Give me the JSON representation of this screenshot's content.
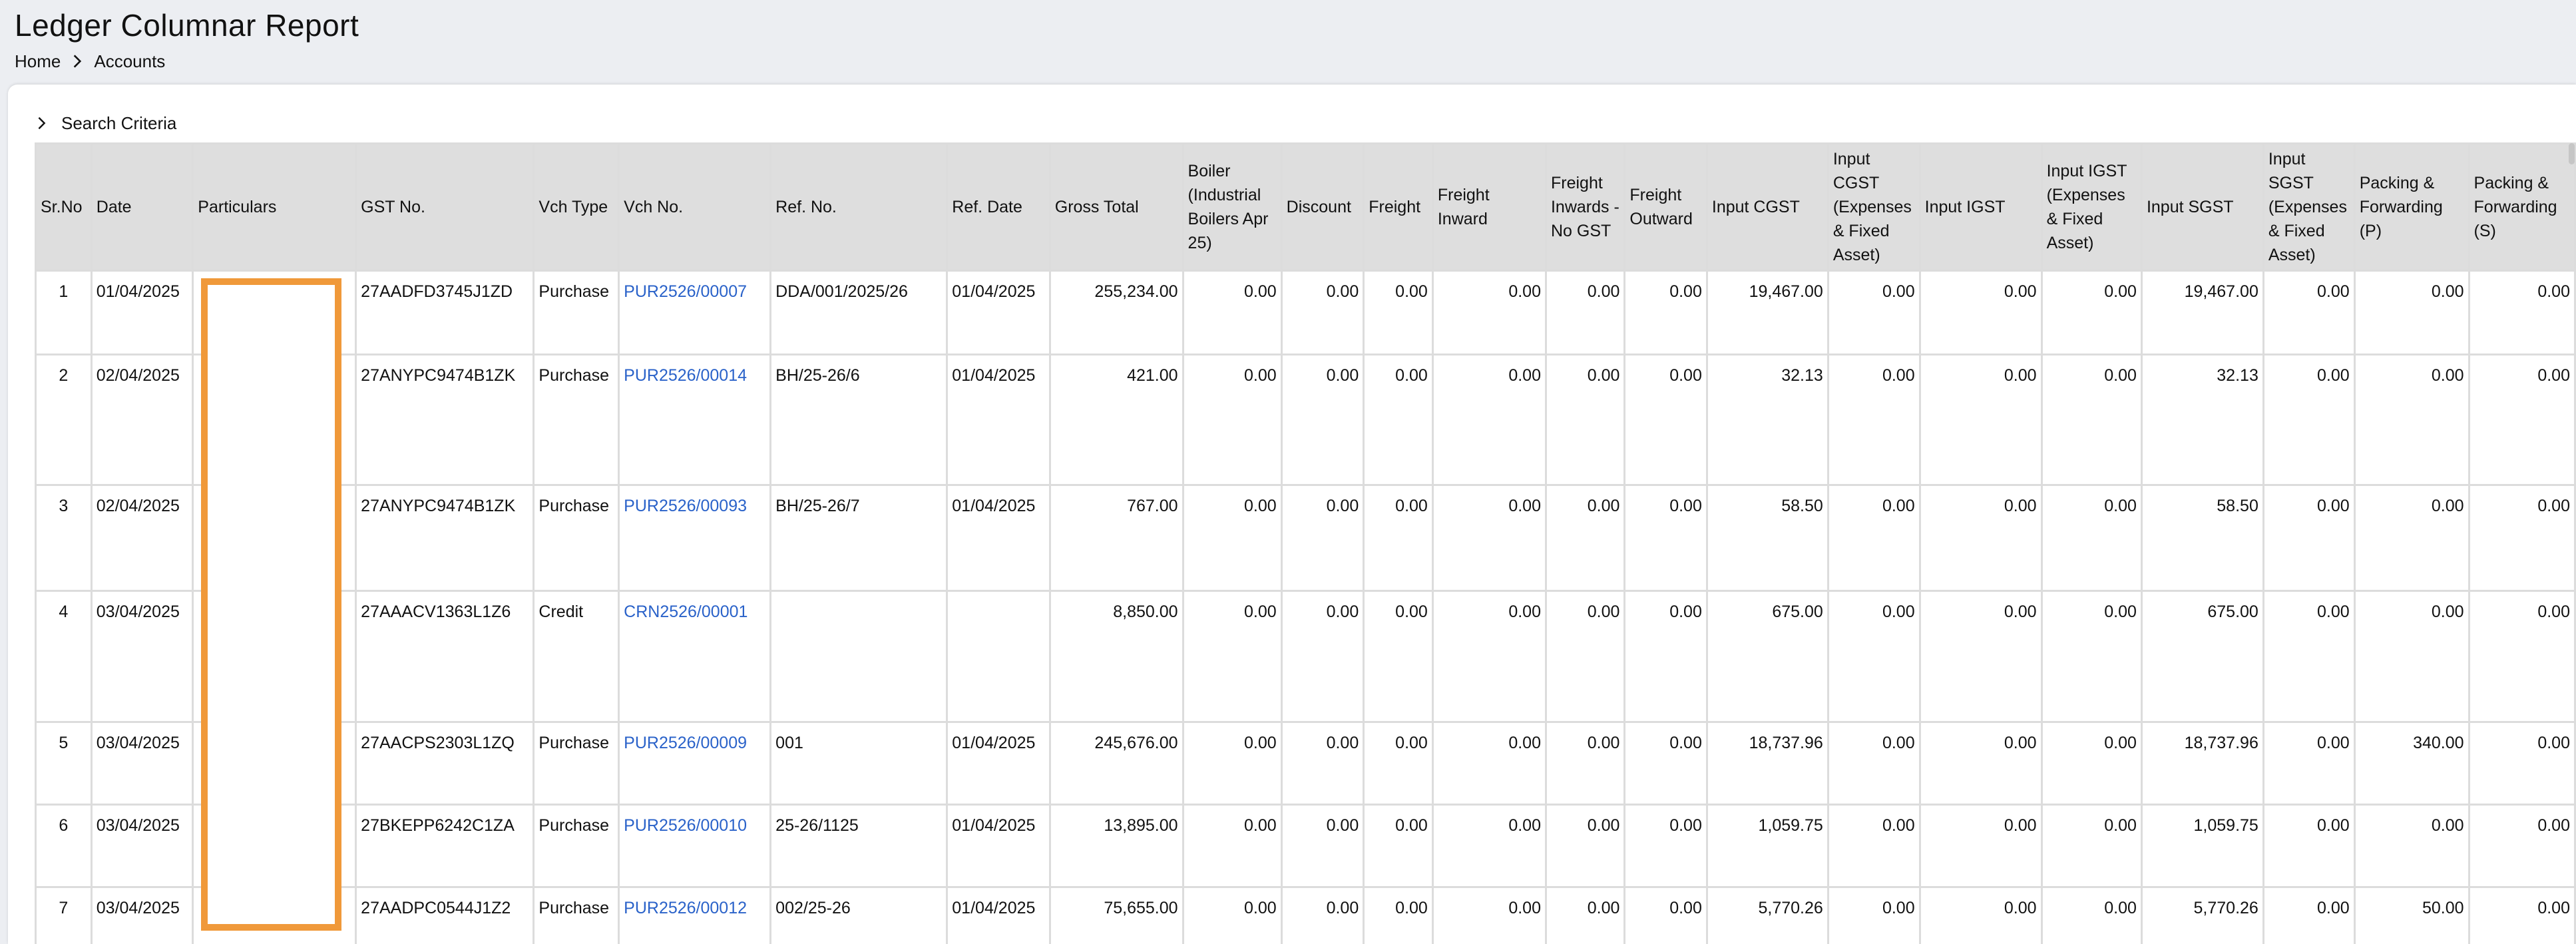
{
  "header": {
    "title": "Ledger Columnar Report",
    "breadcrumb": [
      {
        "label": "Home"
      },
      {
        "label": "Accounts"
      }
    ]
  },
  "search": {
    "label": "Search Criteria",
    "icon": "chevron-right-icon"
  },
  "colors": {
    "link": "#2a62c9",
    "header_bg": "#dedede",
    "border": "#dcdcdc",
    "page_bg": "#eceef2",
    "redaction": "#f0993a"
  },
  "table": {
    "columns": [
      "Sr.No",
      "Date",
      "Particulars",
      "GST No.",
      "Vch Type",
      "Vch No.",
      "Ref. No.",
      "Ref. Date",
      "Gross Total",
      "Boiler (Industrial Boilers Apr 25)",
      "Discount",
      "Freight",
      "Freight Inward",
      "Freight Inwards - No GST",
      "Freight Outward",
      "Input CGST",
      "Input CGST (Expenses & Fixed Asset)",
      "Input IGST",
      "Input IGST (Expenses & Fixed Asset)",
      "Input SGST",
      "Input SGST (Expenses & Fixed Asset)",
      "Packing & Forwarding (P)",
      "Packing & Forwarding (S)"
    ],
    "rows": [
      {
        "sr": "1",
        "date": "01/04/2025",
        "particulars": "",
        "gst": "27AADFD3745J1ZD",
        "vch_type": "Purchase",
        "vch_no": "PUR2526/00007",
        "ref_no": "DDA/001/2025/26",
        "ref_date": "01/04/2025",
        "gross_total": "255,234.00",
        "boiler": "0.00",
        "discount": "0.00",
        "freight": "0.00",
        "freight_inward": "0.00",
        "freight_inwards_no_gst": "0.00",
        "freight_outward": "0.00",
        "input_cgst": "19,467.00",
        "input_cgst_exp": "0.00",
        "input_igst": "0.00",
        "input_igst_exp": "0.00",
        "input_sgst": "19,467.00",
        "input_sgst_exp": "0.00",
        "packing_p": "0.00",
        "packing_s": "0.00"
      },
      {
        "sr": "2",
        "date": "02/04/2025",
        "particulars": "",
        "gst": "27ANYPC9474B1ZK",
        "vch_type": "Purchase",
        "vch_no": "PUR2526/00014",
        "ref_no": "BH/25-26/6",
        "ref_date": "01/04/2025",
        "gross_total": "421.00",
        "boiler": "0.00",
        "discount": "0.00",
        "freight": "0.00",
        "freight_inward": "0.00",
        "freight_inwards_no_gst": "0.00",
        "freight_outward": "0.00",
        "input_cgst": "32.13",
        "input_cgst_exp": "0.00",
        "input_igst": "0.00",
        "input_igst_exp": "0.00",
        "input_sgst": "32.13",
        "input_sgst_exp": "0.00",
        "packing_p": "0.00",
        "packing_s": "0.00"
      },
      {
        "sr": "3",
        "date": "02/04/2025",
        "particulars": "",
        "gst": "27ANYPC9474B1ZK",
        "vch_type": "Purchase",
        "vch_no": "PUR2526/00093",
        "ref_no": "BH/25-26/7",
        "ref_date": "01/04/2025",
        "gross_total": "767.00",
        "boiler": "0.00",
        "discount": "0.00",
        "freight": "0.00",
        "freight_inward": "0.00",
        "freight_inwards_no_gst": "0.00",
        "freight_outward": "0.00",
        "input_cgst": "58.50",
        "input_cgst_exp": "0.00",
        "input_igst": "0.00",
        "input_igst_exp": "0.00",
        "input_sgst": "58.50",
        "input_sgst_exp": "0.00",
        "packing_p": "0.00",
        "packing_s": "0.00"
      },
      {
        "sr": "4",
        "date": "03/04/2025",
        "particulars": "",
        "gst": "27AAACV1363L1Z6",
        "vch_type": "Credit",
        "vch_no": "CRN2526/00001",
        "ref_no": "",
        "ref_date": "",
        "gross_total": "8,850.00",
        "boiler": "0.00",
        "discount": "0.00",
        "freight": "0.00",
        "freight_inward": "0.00",
        "freight_inwards_no_gst": "0.00",
        "freight_outward": "0.00",
        "input_cgst": "675.00",
        "input_cgst_exp": "0.00",
        "input_igst": "0.00",
        "input_igst_exp": "0.00",
        "input_sgst": "675.00",
        "input_sgst_exp": "0.00",
        "packing_p": "0.00",
        "packing_s": "0.00"
      },
      {
        "sr": "5",
        "date": "03/04/2025",
        "particulars": "",
        "gst": "27AACPS2303L1ZQ",
        "vch_type": "Purchase",
        "vch_no": "PUR2526/00009",
        "ref_no": "001",
        "ref_date": "01/04/2025",
        "gross_total": "245,676.00",
        "boiler": "0.00",
        "discount": "0.00",
        "freight": "0.00",
        "freight_inward": "0.00",
        "freight_inwards_no_gst": "0.00",
        "freight_outward": "0.00",
        "input_cgst": "18,737.96",
        "input_cgst_exp": "0.00",
        "input_igst": "0.00",
        "input_igst_exp": "0.00",
        "input_sgst": "18,737.96",
        "input_sgst_exp": "0.00",
        "packing_p": "340.00",
        "packing_s": "0.00"
      },
      {
        "sr": "6",
        "date": "03/04/2025",
        "particulars": "",
        "gst": "27BKEPP6242C1ZA",
        "vch_type": "Purchase",
        "vch_no": "PUR2526/00010",
        "ref_no": "25-26/1125",
        "ref_date": "01/04/2025",
        "gross_total": "13,895.00",
        "boiler": "0.00",
        "discount": "0.00",
        "freight": "0.00",
        "freight_inward": "0.00",
        "freight_inwards_no_gst": "0.00",
        "freight_outward": "0.00",
        "input_cgst": "1,059.75",
        "input_cgst_exp": "0.00",
        "input_igst": "0.00",
        "input_igst_exp": "0.00",
        "input_sgst": "1,059.75",
        "input_sgst_exp": "0.00",
        "packing_p": "0.00",
        "packing_s": "0.00"
      },
      {
        "sr": "7",
        "date": "03/04/2025",
        "particulars": "",
        "gst": "27AADPC0544J1Z2",
        "vch_type": "Purchase",
        "vch_no": "PUR2526/00012",
        "ref_no": "002/25-26",
        "ref_date": "01/04/2025",
        "gross_total": "75,655.00",
        "boiler": "0.00",
        "discount": "0.00",
        "freight": "0.00",
        "freight_inward": "0.00",
        "freight_inwards_no_gst": "0.00",
        "freight_outward": "0.00",
        "input_cgst": "5,770.26",
        "input_cgst_exp": "0.00",
        "input_igst": "0.00",
        "input_igst_exp": "0.00",
        "input_sgst": "5,770.26",
        "input_sgst_exp": "0.00",
        "packing_p": "50.00",
        "packing_s": "0.00"
      }
    ]
  }
}
